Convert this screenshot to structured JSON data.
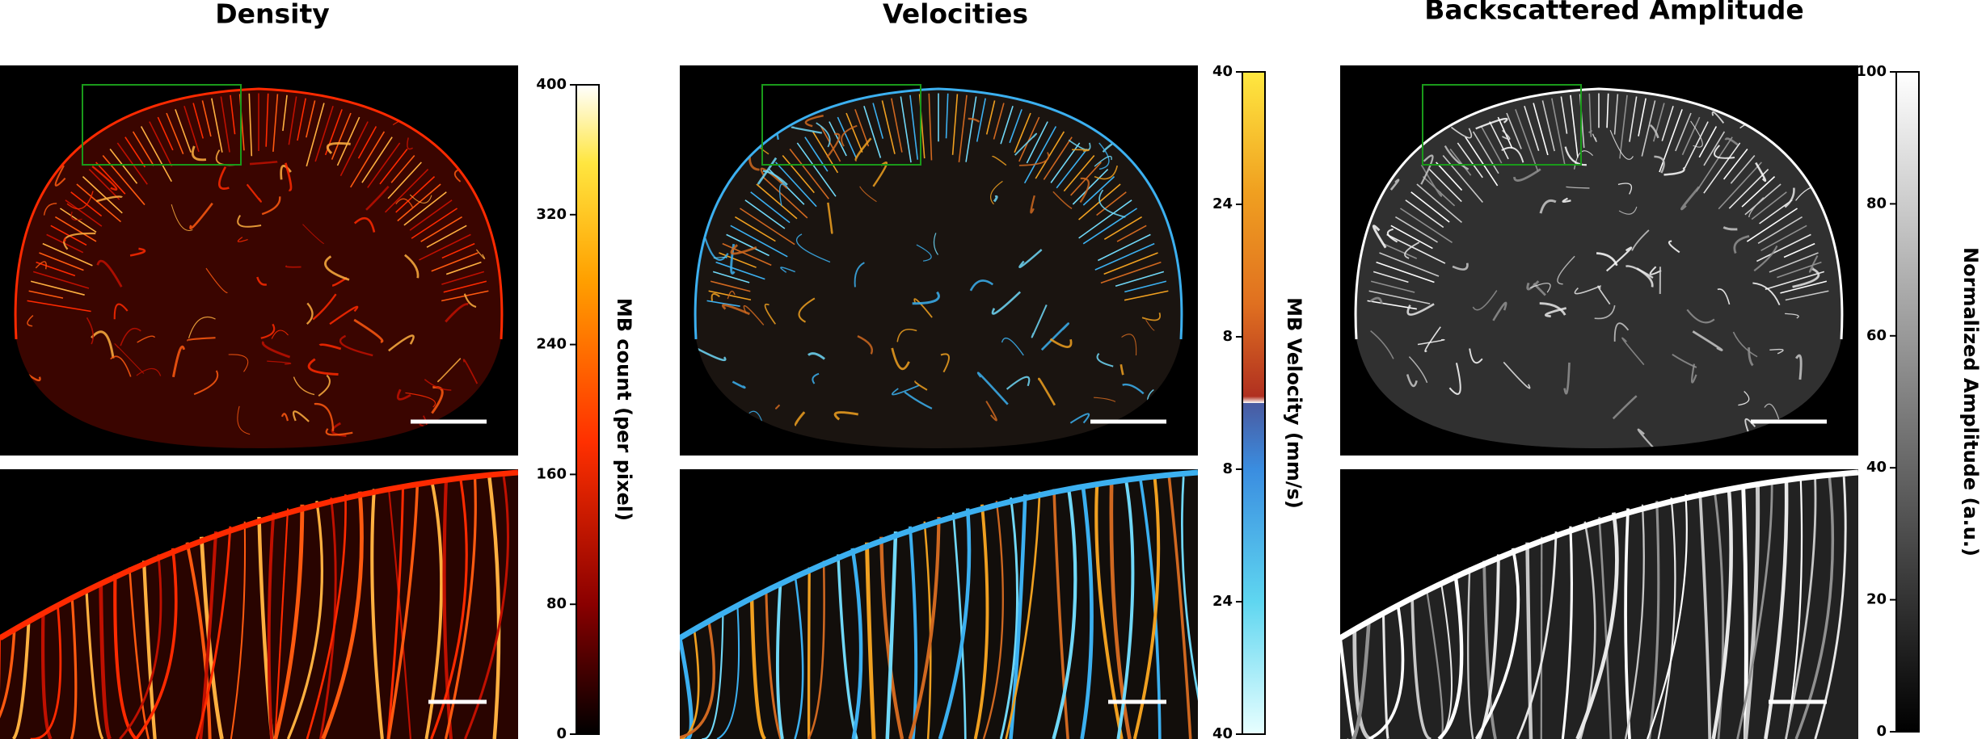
{
  "panels": [
    {
      "title": "Density",
      "colorbar": {
        "label": "MB count (per pixel)",
        "lim": [
          0,
          400
        ],
        "ticks": [
          0,
          80,
          160,
          240,
          320,
          400
        ]
      }
    },
    {
      "title": "Velocities",
      "colorbar": {
        "label": "MB Velocity (mm/s)",
        "lim": [
          -40,
          40
        ],
        "ticks": [
          {
            "value": -40,
            "label": "40"
          },
          {
            "value": -24,
            "label": "24"
          },
          {
            "value": -8,
            "label": "8"
          },
          {
            "value": 8,
            "label": "8"
          },
          {
            "value": 24,
            "label": "24"
          },
          {
            "value": 40,
            "label": "40"
          }
        ]
      }
    },
    {
      "title": "Backscattered Amplitude",
      "colorbar": {
        "label": "Normalized Amplitude (a.u.)",
        "lim": [
          0,
          100
        ],
        "ticks": [
          0,
          20,
          40,
          60,
          80,
          100
        ]
      }
    }
  ]
}
